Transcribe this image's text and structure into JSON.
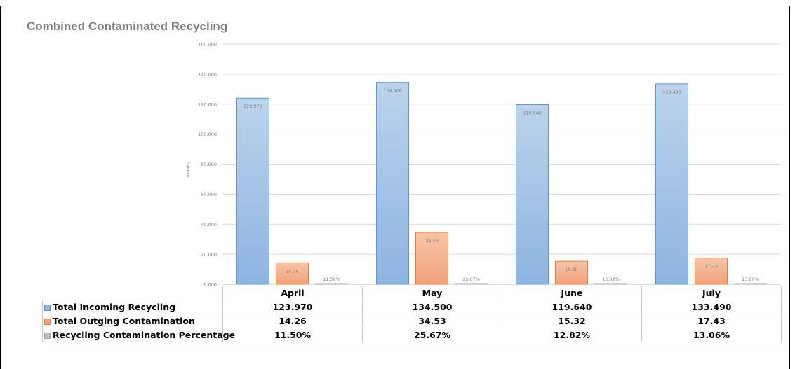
{
  "chart_data": {
    "type": "bar",
    "title": "Combined Contaminated Recycling",
    "ylabel": "TONNES",
    "xlabel": "",
    "ylim": [
      0,
      160
    ],
    "y_ticks": [
      0,
      20,
      40,
      60,
      80,
      100,
      120,
      140,
      160
    ],
    "y_tick_labels": [
      "0.000",
      "20.000",
      "40.000",
      "60.000",
      "80.000",
      "100.000",
      "120.000",
      "140.000",
      "160.000"
    ],
    "grid": true,
    "legend": "data table below chart",
    "categories": [
      "April",
      "May",
      "June",
      "July"
    ],
    "series": [
      {
        "name": "Total Incoming Recycling",
        "color": "#5b9bd5",
        "values": [
          123.97,
          134.5,
          119.64,
          133.49
        ],
        "labels": [
          "123.970",
          "134.500",
          "119.640",
          "133.490"
        ]
      },
      {
        "name": "Total Outging Contamination",
        "color": "#ed7d31",
        "values": [
          14.26,
          34.53,
          15.32,
          17.43
        ],
        "labels": [
          "14.26",
          "34.53",
          "15.32",
          "17.43"
        ]
      },
      {
        "name": "Recycling Contamination Percentage",
        "color": "#a5a5a5",
        "values": [
          0.115,
          0.2567,
          0.1282,
          0.1306
        ],
        "labels": [
          "11.50%",
          "25.67%",
          "12.82%",
          "13.06%"
        ]
      }
    ]
  }
}
